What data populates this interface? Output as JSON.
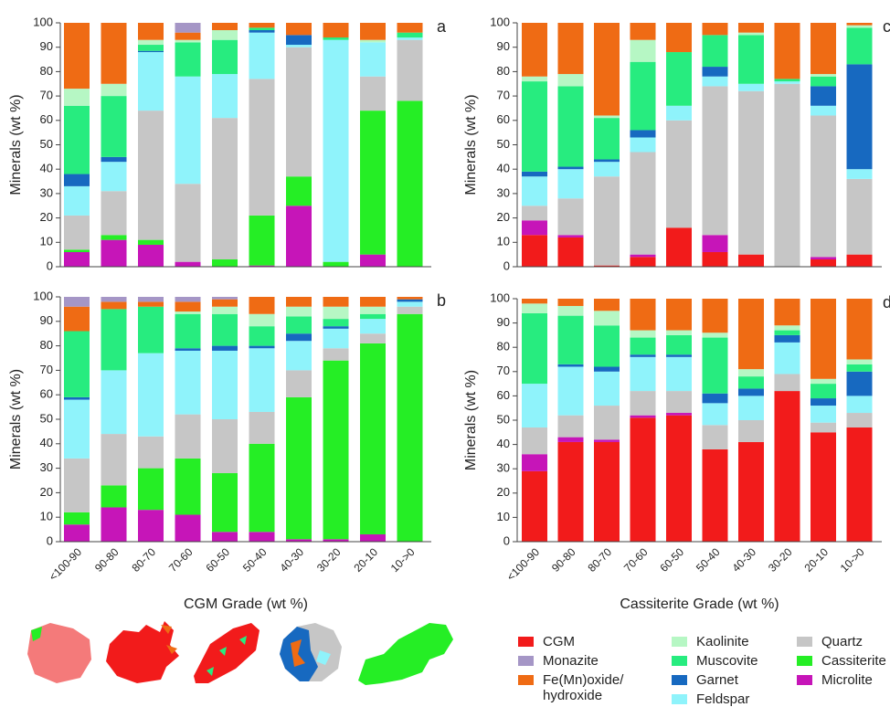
{
  "legend": [
    {
      "name": "CGM",
      "color": "#f21b1b"
    },
    {
      "name": "Monazite",
      "color": "#a596c6"
    },
    {
      "name": "Fe(Mn)oxide/ hydroxide",
      "color": "#ef6b14"
    },
    {
      "name": "Kaolinite",
      "color": "#b6f7c4"
    },
    {
      "name": "Muscovite",
      "color": "#27ec7f"
    },
    {
      "name": "Garnet",
      "color": "#1769c0"
    },
    {
      "name": "Feldspar",
      "color": "#8ff3fb"
    },
    {
      "name": "Quartz",
      "color": "#c6c6c6"
    },
    {
      "name": "Cassiterite",
      "color": "#25ee25"
    },
    {
      "name": "Microlite",
      "color": "#c615b8"
    }
  ],
  "chart_data": [
    {
      "type": "bar",
      "stacked": true,
      "panel_label": "a",
      "ylabel": "Minerals (wt %)",
      "ylim": [
        0,
        100
      ],
      "yticks": [
        0,
        10,
        20,
        30,
        40,
        50,
        60,
        70,
        80,
        90,
        100
      ],
      "series": [
        {
          "values": [
            0,
            0,
            0,
            0,
            0,
            0,
            0,
            0,
            0,
            0
          ]
        },
        {
          "values": [
            0,
            0,
            0,
            4,
            0,
            0,
            0,
            0,
            0,
            0
          ]
        },
        {
          "values": [
            27,
            25,
            7,
            3,
            3,
            2,
            5,
            6,
            7,
            4
          ]
        },
        {
          "values": [
            7,
            5,
            2,
            1,
            4,
            0,
            0,
            0,
            1,
            0
          ]
        },
        {
          "values": [
            28,
            25,
            2.5,
            14,
            14,
            1,
            0,
            1,
            0,
            2
          ]
        },
        {
          "values": [
            5,
            2,
            0.5,
            0,
            0,
            1,
            4,
            0,
            0,
            0
          ]
        },
        {
          "values": [
            12,
            12,
            24,
            44,
            18,
            19,
            1,
            91,
            14,
            1
          ]
        },
        {
          "values": [
            14,
            18,
            53,
            32,
            58,
            56,
            53,
            0,
            14,
            25
          ]
        },
        {
          "values": [
            1,
            2,
            2,
            0,
            3,
            20.5,
            12,
            2,
            59,
            68
          ]
        },
        {
          "values": [
            6,
            11,
            9,
            2,
            0,
            0.5,
            25,
            0,
            5,
            0
          ]
        }
      ]
    },
    {
      "type": "bar",
      "stacked": true,
      "panel_label": "b",
      "ylabel": "Minerals (wt %)",
      "xlabel": "CGM Grade (wt %)",
      "categories": [
        "<100-90",
        "90-80",
        "80-70",
        "70-60",
        "60-50",
        "50-40",
        "40-30",
        "30-20",
        "20-10",
        "10->0"
      ],
      "ylim": [
        0,
        100
      ],
      "yticks": [
        0,
        10,
        20,
        30,
        40,
        50,
        60,
        70,
        80,
        90,
        100
      ],
      "series": [
        {
          "values": [
            0,
            0,
            0,
            0,
            0,
            0,
            0,
            0,
            0,
            0
          ]
        },
        {
          "values": [
            4,
            2,
            2,
            2,
            1,
            0,
            0,
            0,
            0,
            0
          ]
        },
        {
          "values": [
            10,
            3,
            2,
            4,
            3,
            7,
            4,
            4,
            4,
            1
          ]
        },
        {
          "values": [
            0,
            0,
            0,
            1,
            3,
            5,
            4,
            5,
            3,
            0
          ]
        },
        {
          "values": [
            27,
            25,
            19,
            14,
            13,
            8,
            7,
            3,
            2,
            0
          ]
        },
        {
          "values": [
            1,
            0,
            0,
            1,
            2,
            1,
            3,
            1,
            0,
            1
          ]
        },
        {
          "values": [
            24,
            26,
            34,
            26,
            28,
            26,
            12,
            8,
            6,
            2
          ]
        },
        {
          "values": [
            22,
            21,
            13,
            18,
            22,
            13,
            11,
            5,
            4,
            3
          ]
        },
        {
          "values": [
            5,
            9,
            17,
            23,
            24,
            36,
            58,
            73,
            78,
            93
          ]
        },
        {
          "values": [
            7,
            14,
            13,
            11,
            4,
            4,
            1,
            1,
            3,
            0
          ]
        }
      ]
    },
    {
      "type": "bar",
      "stacked": true,
      "panel_label": "c",
      "ylabel": "Minerals (wt %)",
      "ylim": [
        0,
        100
      ],
      "yticks": [
        0,
        10,
        20,
        30,
        40,
        50,
        60,
        70,
        80,
        90,
        100
      ],
      "series": [
        {
          "values": [
            13,
            12,
            0.5,
            4,
            16,
            6,
            5,
            0,
            3,
            5
          ]
        },
        {
          "values": [
            0,
            0,
            0,
            0,
            0,
            0,
            0,
            0,
            0,
            0
          ]
        },
        {
          "values": [
            22,
            21,
            38,
            7,
            12,
            5,
            4,
            23,
            21,
            1
          ]
        },
        {
          "values": [
            2,
            5,
            1,
            9,
            0,
            0,
            1,
            0,
            1,
            1
          ]
        },
        {
          "values": [
            37,
            33,
            17,
            28,
            22,
            13,
            20,
            1,
            4,
            15
          ]
        },
        {
          "values": [
            2,
            1,
            1,
            3,
            0,
            4,
            0,
            0,
            8,
            43
          ]
        },
        {
          "values": [
            12,
            12,
            6,
            6,
            6,
            4,
            3,
            1,
            4,
            4
          ]
        },
        {
          "values": [
            6,
            15,
            36.5,
            42,
            44,
            61,
            67,
            75,
            58,
            31
          ]
        },
        {
          "values": [
            0,
            0,
            0,
            0,
            0,
            0,
            0,
            0,
            0,
            0
          ]
        },
        {
          "values": [
            6,
            1,
            0,
            1,
            0,
            7,
            0,
            0,
            1,
            0
          ]
        }
      ]
    },
    {
      "type": "bar",
      "stacked": true,
      "panel_label": "d",
      "ylabel": "Minerals (wt %)",
      "xlabel": "Cassiterite Grade (wt %)",
      "categories": [
        "<100-90",
        "90-80",
        "80-70",
        "70-60",
        "60-50",
        "50-40",
        "40-30",
        "30-20",
        "20-10",
        "10->0"
      ],
      "ylim": [
        0,
        100
      ],
      "yticks": [
        0,
        10,
        20,
        30,
        40,
        50,
        60,
        70,
        80,
        90,
        100
      ],
      "series": [
        {
          "values": [
            29,
            41,
            41,
            51,
            52,
            38,
            41,
            62,
            45,
            47
          ]
        },
        {
          "values": [
            0,
            0,
            0,
            0,
            0,
            0,
            0,
            0,
            0,
            0
          ]
        },
        {
          "values": [
            2,
            3,
            5,
            13,
            13,
            14,
            29,
            11,
            33,
            25
          ]
        },
        {
          "values": [
            4,
            4,
            6,
            3,
            2,
            2,
            3,
            2,
            2,
            2
          ]
        },
        {
          "values": [
            29,
            20,
            17,
            7,
            8,
            23,
            5,
            2,
            6,
            3
          ]
        },
        {
          "values": [
            0,
            1,
            2,
            1,
            1,
            4,
            3,
            3,
            3,
            10
          ]
        },
        {
          "values": [
            18,
            20,
            14,
            14,
            14,
            9,
            10,
            13,
            7,
            7
          ]
        },
        {
          "values": [
            11,
            9,
            14,
            10,
            9,
            10,
            9,
            7,
            4,
            6
          ]
        },
        {
          "values": [
            0,
            0,
            0,
            0,
            0,
            0,
            0,
            0,
            0,
            0
          ]
        },
        {
          "values": [
            7,
            2,
            1,
            1,
            1,
            0,
            0,
            0,
            0,
            0
          ]
        }
      ]
    }
  ]
}
